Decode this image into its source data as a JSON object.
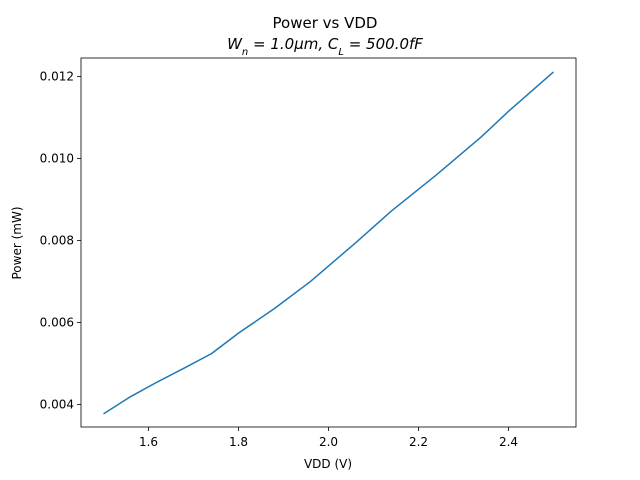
{
  "chart_data": {
    "type": "line",
    "title": "Power vs VDD",
    "subtitle": "W_n = 1.0μm, C_L = 500.0fF",
    "xlabel": "VDD (V)",
    "ylabel": "Power (mW)",
    "xlim": [
      1.45,
      2.55
    ],
    "ylim": [
      0.00345,
      0.01245
    ],
    "xticks": [
      1.6,
      1.8,
      2.0,
      2.2,
      2.4
    ],
    "xtick_labels": [
      "1.6",
      "1.8",
      "2.0",
      "2.2",
      "2.4"
    ],
    "yticks": [
      0.004,
      0.006,
      0.008,
      0.01,
      0.012
    ],
    "ytick_labels": [
      "0.004",
      "0.006",
      "0.008",
      "0.010",
      "0.012"
    ],
    "grid": false,
    "series": [
      {
        "color": "#1f77b4",
        "x": [
          1.5,
          1.56,
          1.62,
          1.68,
          1.74,
          1.8,
          1.88,
          1.96,
          2.06,
          2.14,
          2.24,
          2.34,
          2.4,
          2.5
        ],
        "y": [
          0.00377,
          0.00419,
          0.00455,
          0.00489,
          0.00524,
          0.00574,
          0.00634,
          0.007,
          0.00794,
          0.00872,
          0.0096,
          0.01053,
          0.01115,
          0.01211
        ]
      }
    ]
  }
}
